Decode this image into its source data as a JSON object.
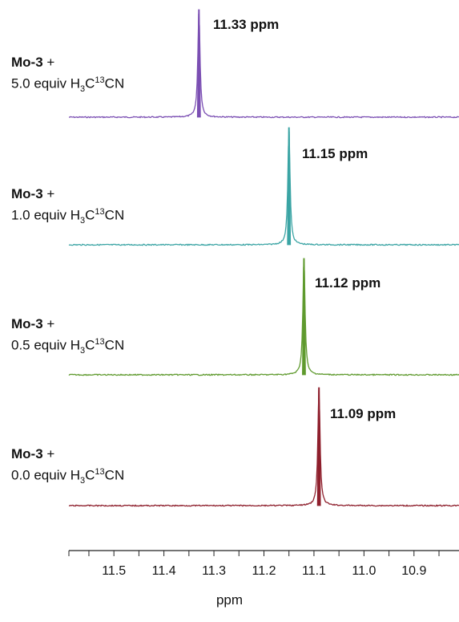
{
  "chart_data": {
    "type": "line",
    "chart_kind": "stacked NMR spectra",
    "xlabel": "ppm",
    "x_reversed": true,
    "xlim": [
      11.59,
      10.81
    ],
    "ticks": [
      11.5,
      11.4,
      11.3,
      11.2,
      11.1,
      11.0,
      10.9
    ],
    "tick_labels": [
      "11.5",
      "11.4",
      "11.3",
      "11.2",
      "11.1",
      "11.0",
      "10.9"
    ],
    "grid": false,
    "series": [
      {
        "compound": "Mo-3",
        "connector": " +",
        "amount": "5.0 equiv ",
        "reagent_a": "H",
        "sub": "3",
        "reagent_b": "C",
        "sup": "13",
        "reagent_c": "CN",
        "peak_ppm": 11.33,
        "peak_label": "11.33 ppm",
        "color": "#7b4fb3"
      },
      {
        "compound": "Mo-3",
        "connector": " +",
        "amount": "1.0 equiv ",
        "reagent_a": "H",
        "sub": "3",
        "reagent_b": "C",
        "sup": "13",
        "reagent_c": "CN",
        "peak_ppm": 11.15,
        "peak_label": "11.15 ppm",
        "color": "#3aa4a4"
      },
      {
        "compound": "Mo-3",
        "connector": " +",
        "amount": "0.5 equiv ",
        "reagent_a": "H",
        "sub": "3",
        "reagent_b": "C",
        "sup": "13",
        "reagent_c": "CN",
        "peak_ppm": 11.12,
        "peak_label": "11.12 ppm",
        "color": "#5f9a2e"
      },
      {
        "compound": "Mo-3",
        "connector": " +",
        "amount": "0.0 equiv ",
        "reagent_a": "H",
        "sub": "3",
        "reagent_b": "C",
        "sup": "13",
        "reagent_c": "CN",
        "peak_ppm": 11.09,
        "peak_label": "11.09 ppm",
        "color": "#8e1f2c"
      }
    ]
  }
}
